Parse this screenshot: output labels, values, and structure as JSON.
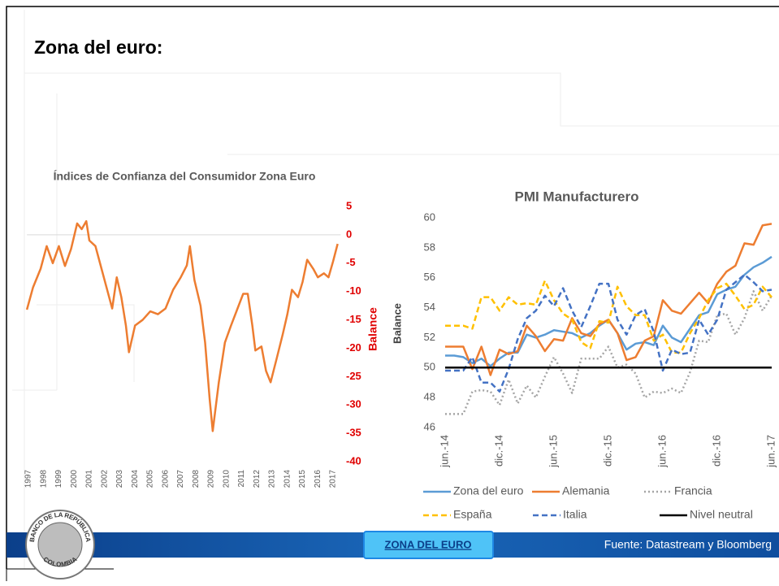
{
  "title": "Zona del euro:",
  "logo": {
    "top": "BANCO DE LA REPÚBLICA",
    "bottom": "COLOMBIA"
  },
  "footer": {
    "button": "ZONA DEL EURO",
    "source": "Fuente: Datastream y Bloomberg"
  },
  "chart_data": [
    {
      "type": "line",
      "title": "Índices de Confianza del Consumidor Zona Euro",
      "y_label": "Balance",
      "color": "#ed7d31",
      "x": [
        1996.9,
        1997.3,
        1997.8,
        1998.2,
        1998.6,
        1999.0,
        1999.4,
        1999.8,
        2000.2,
        2000.5,
        2000.8,
        2001.0,
        2001.4,
        2001.8,
        2002.0,
        2002.5,
        2002.8,
        2003.1,
        2003.4,
        2003.6,
        2004.0,
        2004.5,
        2005.0,
        2005.5,
        2006.0,
        2006.5,
        2007.0,
        2007.4,
        2007.6,
        2007.9,
        2008.3,
        2008.6,
        2008.9,
        2009.1,
        2009.5,
        2009.9,
        2010.3,
        2010.7,
        2011.1,
        2011.4,
        2011.7,
        2011.9,
        2012.3,
        2012.6,
        2012.9,
        2013.3,
        2013.7,
        2014.0,
        2014.3,
        2014.7,
        2015.0,
        2015.3,
        2015.7,
        2016.0,
        2016.4,
        2016.7,
        2017.0,
        2017.3
      ],
      "values": [
        -13.2,
        -9.3,
        -6,
        -2,
        -5,
        -2,
        -5.5,
        -2.5,
        2,
        1,
        2.4,
        -1,
        -2,
        -6,
        -8,
        -13,
        -7.5,
        -11,
        -16,
        -20.7,
        -16,
        -15,
        -13.5,
        -14,
        -13,
        -9.7,
        -7.5,
        -5.4,
        -2,
        -8,
        -12.5,
        -19,
        -29,
        -34.6,
        -26,
        -19,
        -16,
        -13.2,
        -10.4,
        -10.4,
        -16,
        -20.4,
        -19.7,
        -24,
        -26,
        -21.8,
        -17.5,
        -14,
        -9.7,
        -11,
        -8.3,
        -4.4,
        -6,
        -7.5,
        -6.8,
        -7.5,
        -4.7,
        -1.6
      ],
      "xlim": [
        1996.9,
        2017.5
      ],
      "xticks": [
        1997,
        1998,
        1999,
        2000,
        2001,
        2002,
        2003,
        2004,
        2005,
        2006,
        2007,
        2008,
        2009,
        2010,
        2011,
        2012,
        2013,
        2014,
        2015,
        2016,
        2017
      ],
      "ylim": [
        -40,
        5
      ],
      "yticks": [
        5,
        0,
        -5,
        -10,
        -15,
        -20,
        -25,
        -30,
        -35,
        -40
      ],
      "tick_color": "#e00000"
    },
    {
      "type": "line",
      "title": "PMI Manufacturero",
      "y_label": "Balance",
      "categories": [
        "jun.-14",
        null,
        null,
        null,
        null,
        null,
        "dic.-14",
        null,
        null,
        null,
        null,
        null,
        "jun.-15",
        null,
        null,
        null,
        null,
        null,
        "dic.-15",
        null,
        null,
        null,
        null,
        null,
        "jun.-16",
        null,
        null,
        null,
        null,
        null,
        "dic.-16",
        null,
        null,
        null,
        null,
        null,
        "jun.-17"
      ],
      "ylim": [
        46,
        60
      ],
      "yticks": [
        46,
        48,
        50,
        52,
        54,
        56,
        58,
        60
      ],
      "grid": false,
      "series": [
        {
          "name": "Zona del euro",
          "color": "#5b9bd5",
          "style": "solid",
          "values": [
            50.8,
            50.8,
            50.7,
            50.3,
            50.6,
            50.1,
            50.6,
            51.0,
            51.0,
            52.2,
            52.0,
            52.2,
            52.5,
            52.4,
            52.3,
            52.0,
            52.3,
            52.8,
            53.2,
            52.3,
            51.2,
            51.6,
            51.7,
            51.5,
            52.8,
            52.0,
            51.7,
            52.6,
            53.5,
            53.7,
            54.9,
            55.2,
            55.4,
            56.2,
            56.7,
            57.0,
            57.4
          ]
        },
        {
          "name": "Alemania",
          "color": "#ed7d31",
          "style": "solid",
          "values": [
            51.4,
            51.4,
            51.4,
            49.9,
            51.4,
            49.5,
            51.2,
            50.9,
            51.1,
            52.8,
            52.1,
            51.1,
            51.9,
            51.8,
            53.3,
            52.3,
            52.1,
            52.9,
            53.2,
            52.3,
            50.5,
            50.7,
            51.8,
            52.1,
            54.5,
            53.8,
            53.6,
            54.3,
            55.0,
            54.3,
            55.6,
            56.4,
            56.8,
            58.3,
            58.2,
            59.5,
            59.6
          ]
        },
        {
          "name": "Francia",
          "color": "#a5a5a5",
          "style": "dotted",
          "values": [
            46.9,
            46.9,
            46.9,
            48.4,
            48.5,
            48.4,
            47.5,
            49.2,
            47.6,
            48.8,
            48.0,
            49.4,
            50.7,
            49.6,
            48.3,
            50.6,
            50.6,
            50.6,
            51.4,
            50.0,
            50.2,
            49.6,
            48.0,
            48.4,
            48.3,
            48.6,
            48.3,
            49.7,
            51.8,
            51.7,
            53.5,
            53.6,
            52.2,
            53.3,
            55.1,
            53.8,
            54.8
          ]
        },
        {
          "name": "España",
          "color": "#ffc000",
          "style": "dashed",
          "values": [
            52.8,
            52.8,
            52.8,
            52.6,
            54.7,
            54.7,
            53.8,
            54.7,
            54.2,
            54.3,
            54.2,
            55.8,
            54.5,
            53.6,
            53.2,
            51.7,
            51.3,
            53.1,
            53.0,
            55.4,
            54.1,
            53.5,
            53.5,
            51.8,
            52.2,
            51.0,
            51.0,
            52.3,
            53.3,
            54.5,
            55.3,
            55.6,
            54.8,
            53.9,
            54.2,
            55.4,
            54.7
          ]
        },
        {
          "name": "Italia",
          "color": "#4472c4",
          "style": "dashed",
          "values": [
            49.8,
            49.8,
            49.8,
            50.7,
            49.0,
            49.0,
            48.4,
            49.9,
            51.9,
            53.3,
            53.8,
            54.8,
            54.1,
            55.3,
            53.8,
            52.7,
            54.1,
            55.6,
            55.6,
            53.2,
            52.2,
            53.5,
            53.9,
            52.4,
            49.8,
            51.2,
            50.9,
            51.0,
            53.2,
            52.2,
            53.2,
            55.2,
            55.7,
            56.2,
            55.7,
            55.1,
            55.2
          ]
        },
        {
          "name": "Nivel neutral",
          "color": "#000000",
          "style": "solid",
          "values": [
            50,
            50,
            50,
            50,
            50,
            50,
            50,
            50,
            50,
            50,
            50,
            50,
            50,
            50,
            50,
            50,
            50,
            50,
            50,
            50,
            50,
            50,
            50,
            50,
            50,
            50,
            50,
            50,
            50,
            50,
            50,
            50,
            50,
            50,
            50,
            50,
            50
          ]
        }
      ]
    }
  ]
}
